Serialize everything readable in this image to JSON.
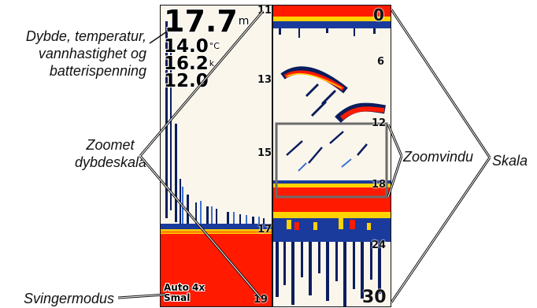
{
  "callouts": {
    "depth_temp": [
      "Dybde, temperatur,",
      "vannhastighet og",
      "batterispenning"
    ],
    "zoomed_scale": [
      "Zoomet",
      "dybdeskala"
    ],
    "zoom_window": "Zoomvindu",
    "scale": "Skala",
    "transducer_mode": "Svingermodus"
  },
  "readouts": {
    "depth": "17.7",
    "depth_unit": "m",
    "temperature": "14.0",
    "temperature_unit": "°C",
    "speed": "16.2",
    "speed_unit": "k",
    "voltage": "12.0"
  },
  "zoomed_scale_ticks": [
    "11",
    "13",
    "15",
    "17",
    "19"
  ],
  "scale_ticks": [
    "0",
    "6",
    "12",
    "18",
    "24",
    "30"
  ],
  "mode": {
    "line1": "Auto 4x",
    "line2": "Smal"
  },
  "colors": {
    "red": "#ff1a00",
    "yellow": "#ffd200",
    "blue": "#1a3a9c",
    "navy": "#0b1d5e",
    "water": "#fbf6ec"
  }
}
